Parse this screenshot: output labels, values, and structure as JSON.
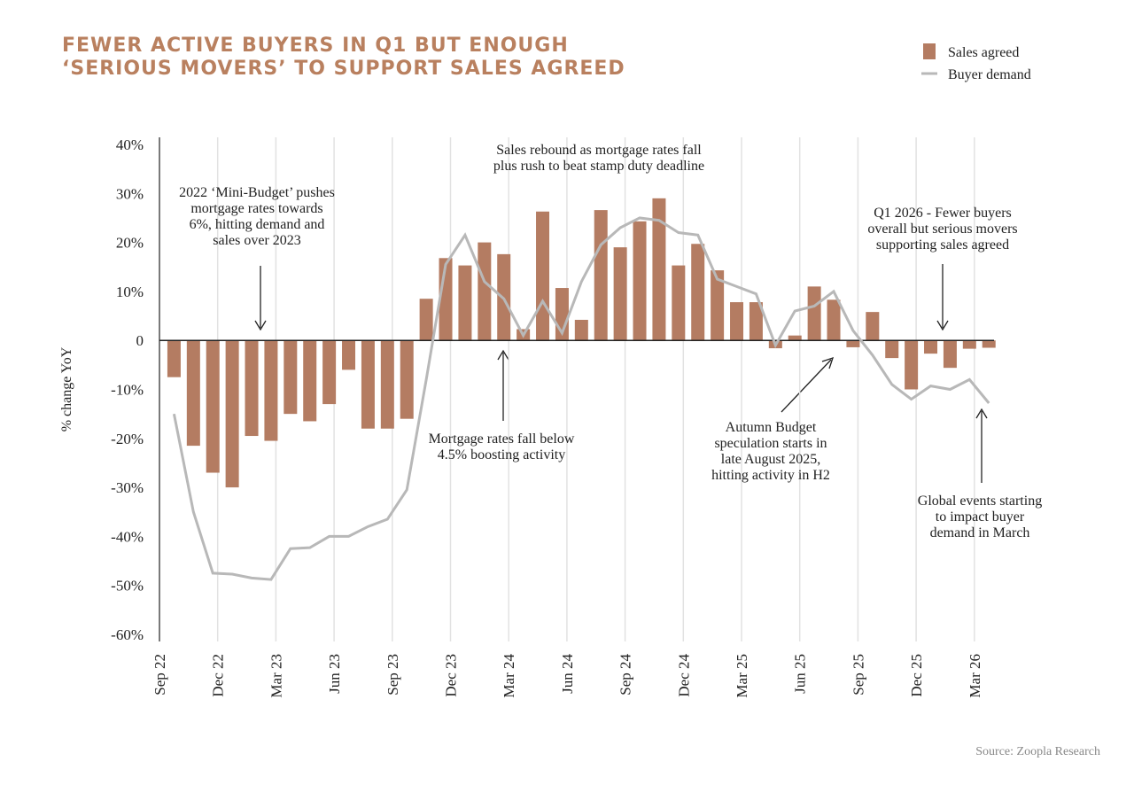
{
  "chart_data": {
    "type": "bar-line",
    "title": [
      "FEWER ACTIVE BUYERS IN Q1 BUT ENOUGH",
      "‘SERIOUS MOVERS’ TO SUPPORT SALES AGREED"
    ],
    "y_label": "% change YoY",
    "source": "Source: Zoopla Research",
    "categories": [
      "Sep 22",
      null,
      null,
      "Dec 22",
      null,
      null,
      "Mar 23",
      null,
      null,
      "Jun 23",
      null,
      null,
      "Sep 23",
      null,
      null,
      "Dec 23",
      null,
      null,
      "Mar 24",
      null,
      null,
      "Jun 24",
      null,
      null,
      "Sep 24",
      null,
      null,
      "Dec 24",
      null,
      null,
      "Mar 25",
      null,
      null,
      "Jun 25",
      null,
      null,
      "Sep 25",
      null,
      null,
      "Dec 25",
      null,
      null,
      "Mar 26"
    ],
    "series": [
      {
        "name": "Sales agreed",
        "type": "bar",
        "color": "#b47c62",
        "values": [
          -7.5,
          -21.5,
          -27,
          -30,
          -19.5,
          -20.5,
          -15,
          -16.5,
          -13,
          -6,
          -18,
          -18,
          -16,
          8.5,
          16.8,
          15.3,
          20,
          17.6,
          2.3,
          26.3,
          10.7,
          4.2,
          26.6,
          19,
          24.3,
          29,
          15.3,
          19.7,
          14.3,
          7.8,
          7.8,
          -1.6,
          1,
          11,
          8.3,
          -1.4,
          5.8,
          -3.6,
          -10,
          -2.7,
          -5.6,
          -1.7,
          -1.5
        ]
      },
      {
        "name": "Buyer demand",
        "type": "line",
        "color": "#b8b8b8",
        "values": [
          -15,
          -35,
          -47.5,
          -47.7,
          -48.5,
          -48.8,
          -42.5,
          -42.3,
          -40,
          -40,
          -38,
          -36.5,
          -30.5,
          -8,
          15.5,
          21.5,
          12,
          8.5,
          1,
          8,
          1.5,
          12,
          19.5,
          23,
          25,
          24.5,
          22,
          21.5,
          12.5,
          11,
          9.5,
          -1,
          6,
          7,
          10,
          2,
          -3,
          -9,
          -12,
          -9.3,
          -10,
          -8,
          -12.8
        ]
      }
    ],
    "ylim": [
      -60,
      40
    ],
    "yticks": [
      {
        "value": -60,
        "label": "-60%"
      },
      {
        "value": -50,
        "label": "-50%"
      },
      {
        "value": -40,
        "label": "-40%"
      },
      {
        "value": -30,
        "label": "-30%"
      },
      {
        "value": -20,
        "label": "-20%"
      },
      {
        "value": -10,
        "label": "-10%"
      },
      0,
      {
        "value": 10,
        "label": "10%"
      },
      {
        "value": 20,
        "label": "20%"
      },
      {
        "value": 30,
        "label": "30%"
      },
      {
        "value": 40,
        "label": "40%"
      }
    ],
    "grid": true,
    "legend": "top-right",
    "annotations": [
      {
        "lines": [
          "2022 ‘Mini-Budget’ pushes",
          "mortgage rates towards",
          "6%, hitting demand and",
          "sales over 2023"
        ]
      },
      {
        "lines": [
          "Sales rebound as mortgage rates fall",
          "plus rush to beat stamp duty deadline"
        ]
      },
      {
        "lines": [
          "Q1 2026 - Fewer buyers",
          "overall but serious movers",
          "supporting sales agreed"
        ]
      },
      {
        "lines": [
          "Mortgage rates fall below",
          "4.5% boosting activity"
        ]
      },
      {
        "lines": [
          "Autumn Budget",
          "speculation starts in",
          "late August 2025,",
          "hitting activity in H2"
        ]
      },
      {
        "lines": [
          "Global events starting",
          "to impact buyer",
          "demand in March"
        ]
      }
    ]
  }
}
